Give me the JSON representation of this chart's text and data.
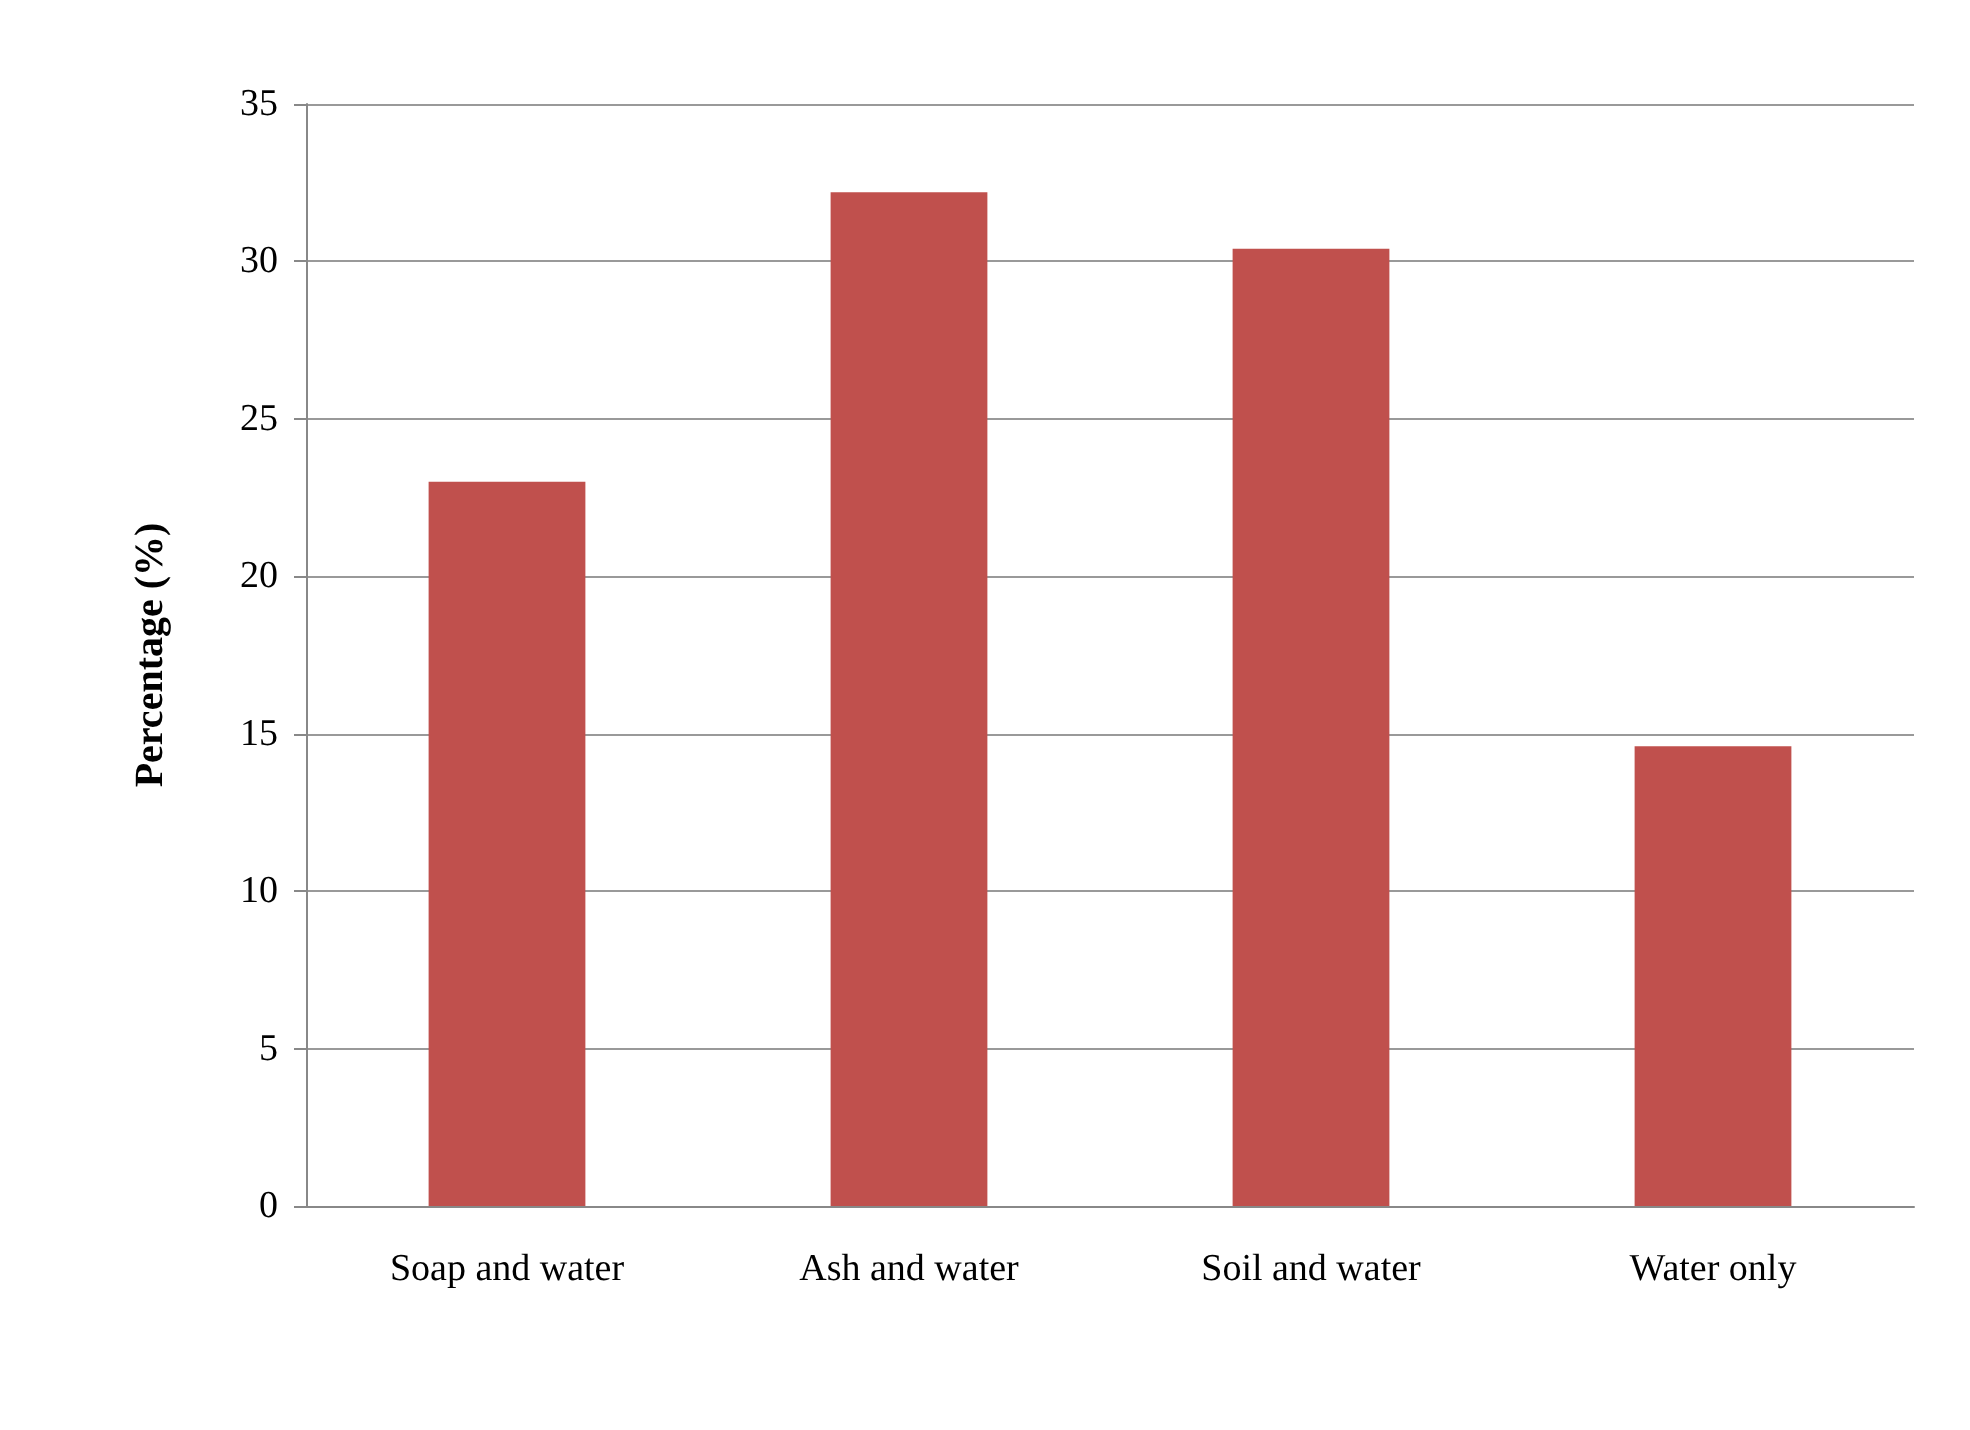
{
  "chart_data": {
    "type": "bar",
    "ylabel": "Percentage (%)",
    "categories": [
      "Soap and water",
      "Ash and water",
      "Soil and water",
      "Water only"
    ],
    "values": [
      23,
      32.2,
      30.4,
      14.6
    ],
    "color": "#c0504d",
    "ylim": [
      0,
      35
    ],
    "yticks": [
      0,
      5,
      10,
      15,
      20,
      25,
      30,
      35
    ],
    "grid": "y"
  }
}
